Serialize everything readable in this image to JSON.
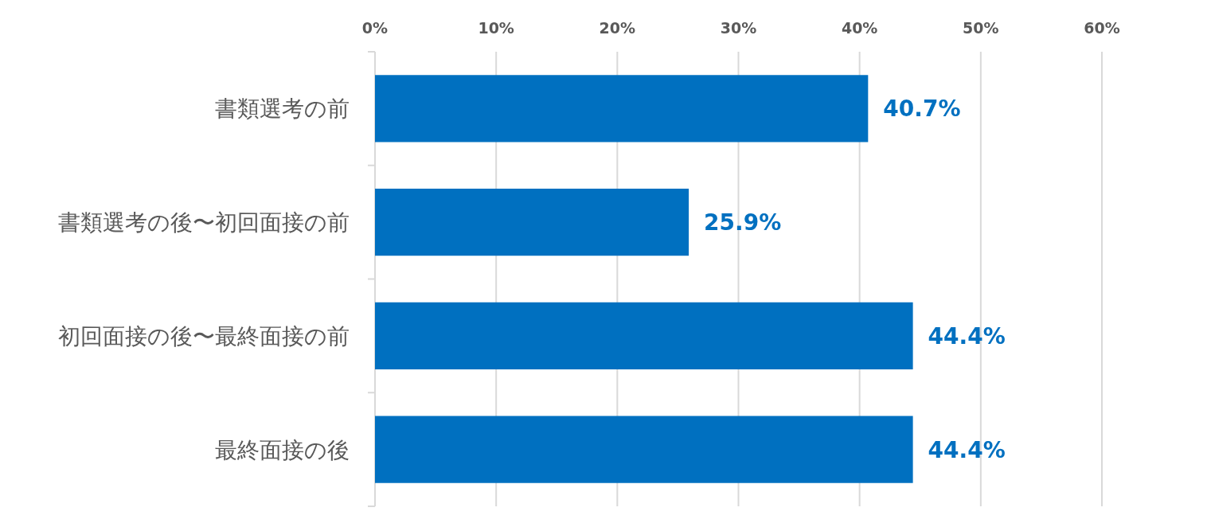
{
  "chart_data": {
    "type": "bar",
    "orientation": "horizontal",
    "categories": [
      "書類選考の前",
      "書類選考の後〜初回面接の前",
      "初回面接の後〜最終面接の前",
      "最終面接の後"
    ],
    "values": [
      40.7,
      25.9,
      44.4,
      44.4
    ],
    "value_labels": [
      "40.7%",
      "25.9%",
      "44.4%",
      "44.4%"
    ],
    "color": "#0070c0",
    "xlim": [
      0,
      60
    ],
    "xticks": [
      {
        "value": 0,
        "label": "0%"
      },
      {
        "value": 10,
        "label": "10%"
      },
      {
        "value": 20,
        "label": "20%"
      },
      {
        "value": 30,
        "label": "30%"
      },
      {
        "value": 40,
        "label": "40%"
      },
      {
        "value": 50,
        "label": "50%"
      },
      {
        "value": 60,
        "label": "60%"
      }
    ],
    "grid": "x"
  }
}
